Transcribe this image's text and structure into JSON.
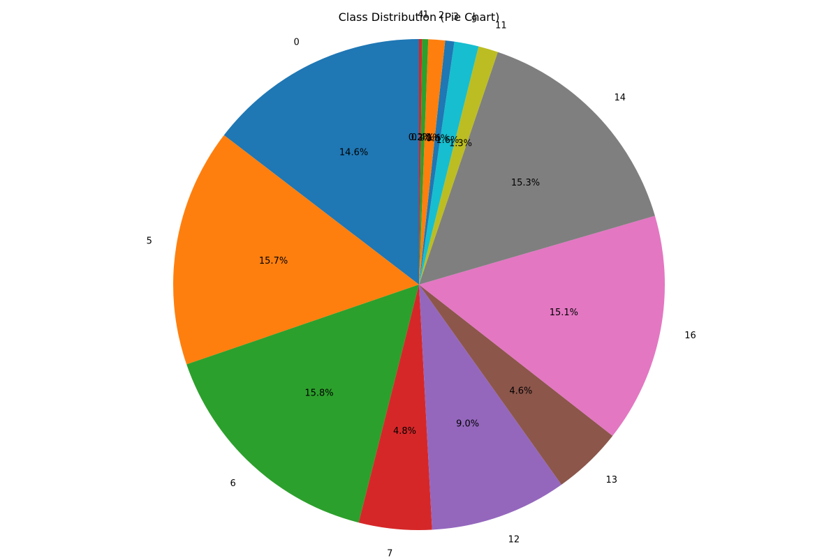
{
  "chart_data": {
    "type": "pie",
    "title": "Class Distribution (Pie Chart)",
    "start_angle_deg": 90,
    "direction": "counterclockwise",
    "slices": [
      {
        "label": "0",
        "value": 14.6,
        "pct_label": "14.6%",
        "color": "#1f77b4"
      },
      {
        "label": "5",
        "value": 15.7,
        "pct_label": "15.7%",
        "color": "#ff7f0e"
      },
      {
        "label": "6",
        "value": 15.8,
        "pct_label": "15.8%",
        "color": "#2ca02c"
      },
      {
        "label": "7",
        "value": 4.8,
        "pct_label": "4.8%",
        "color": "#d62728"
      },
      {
        "label": "12",
        "value": 9.0,
        "pct_label": "9.0%",
        "color": "#9467bd"
      },
      {
        "label": "13",
        "value": 4.6,
        "pct_label": "4.6%",
        "color": "#8c564b"
      },
      {
        "label": "16",
        "value": 15.1,
        "pct_label": "15.1%",
        "color": "#e377c2"
      },
      {
        "label": "14",
        "value": 15.3,
        "pct_label": "15.3%",
        "color": "#7f7f7f"
      },
      {
        "label": "11",
        "value": 1.3,
        "pct_label": "1.3%",
        "color": "#bcbd22"
      },
      {
        "label": "9",
        "value": 1.6,
        "pct_label": "1.6%",
        "color": "#17becf"
      },
      {
        "label": "3",
        "value": 0.6,
        "pct_label": "0.6%",
        "color": "#1f77b4"
      },
      {
        "label": "2",
        "value": 1.1,
        "pct_label": "1.1%",
        "color": "#ff7f0e"
      },
      {
        "label": "1",
        "value": 0.4,
        "pct_label": "0.4%",
        "color": "#2ca02c"
      },
      {
        "label": "4",
        "value": 0.2,
        "pct_label": "0.2%",
        "color": "#d62728"
      }
    ]
  }
}
